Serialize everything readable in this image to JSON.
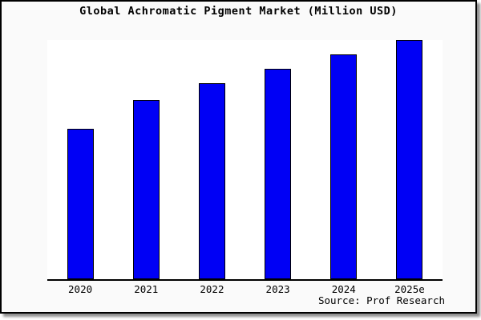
{
  "chart_data": {
    "type": "bar",
    "title": "Global Achromatic Pigment Market (Million USD)",
    "categories": [
      "2020",
      "2021",
      "2022",
      "2023",
      "2024",
      "2025e"
    ],
    "values": [
      63,
      75,
      82,
      88,
      94,
      100
    ],
    "value_note": "relative index estimated from bar heights (2025e = 100); no y-axis, gridlines or data labels shown",
    "xlabel": "",
    "ylabel": "",
    "ylim": [
      0,
      100
    ],
    "grid": false,
    "legend_position": "none",
    "source_note": "Source: Prof Research",
    "colors": {
      "bar_fill": "#0000f5",
      "bar_border": "#000000",
      "plot_background": "#ffffff",
      "frame_background": "#fafafa",
      "frame_border": "#000000",
      "shadow": "#8f8f8f",
      "text": "#000000"
    }
  }
}
